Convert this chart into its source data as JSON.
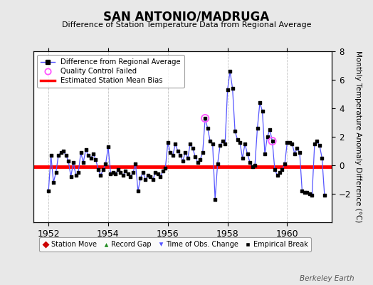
{
  "title": "SAN ANTONIO/MADRUGA",
  "subtitle": "Difference of Station Temperature Data from Regional Average",
  "ylabel_right": "Monthly Temperature Anomaly Difference (°C)",
  "ylim": [
    -4,
    8
  ],
  "xlim": [
    1951.5,
    1961.5
  ],
  "xticks": [
    1952,
    1954,
    1956,
    1958,
    1960
  ],
  "yticks_right": [
    -2,
    0,
    2,
    4,
    6,
    8
  ],
  "bias_y": -0.1,
  "line_color": "#5555ff",
  "marker_color": "#000000",
  "bias_color": "#ff0000",
  "bg_color": "#e8e8e8",
  "plot_bg": "#ffffff",
  "watermark": "Berkeley Earth",
  "qc_failed_color": "#ff55ff",
  "qc_failed_points": [
    [
      1957.25,
      3.3
    ],
    [
      1959.5,
      1.7
    ]
  ],
  "time_series": [
    [
      1952.0,
      -1.8
    ],
    [
      1952.083,
      0.7
    ],
    [
      1952.167,
      -1.2
    ],
    [
      1952.25,
      -0.5
    ],
    [
      1952.333,
      0.7
    ],
    [
      1952.417,
      0.9
    ],
    [
      1952.5,
      1.0
    ],
    [
      1952.583,
      0.7
    ],
    [
      1952.667,
      0.3
    ],
    [
      1952.75,
      -0.8
    ],
    [
      1952.833,
      0.2
    ],
    [
      1952.917,
      -0.7
    ],
    [
      1953.0,
      -0.5
    ],
    [
      1953.083,
      0.9
    ],
    [
      1953.167,
      0.2
    ],
    [
      1953.25,
      1.1
    ],
    [
      1953.333,
      0.7
    ],
    [
      1953.417,
      0.5
    ],
    [
      1953.5,
      0.8
    ],
    [
      1953.583,
      0.4
    ],
    [
      1953.667,
      -0.3
    ],
    [
      1953.75,
      -0.7
    ],
    [
      1953.833,
      -0.3
    ],
    [
      1953.917,
      0.1
    ],
    [
      1954.0,
      1.3
    ],
    [
      1954.083,
      -0.6
    ],
    [
      1954.167,
      -0.5
    ],
    [
      1954.25,
      -0.6
    ],
    [
      1954.333,
      -0.3
    ],
    [
      1954.417,
      -0.5
    ],
    [
      1954.5,
      -0.7
    ],
    [
      1954.583,
      -0.4
    ],
    [
      1954.667,
      -0.6
    ],
    [
      1954.75,
      -0.8
    ],
    [
      1954.833,
      -0.5
    ],
    [
      1954.917,
      0.1
    ],
    [
      1955.0,
      -1.8
    ],
    [
      1955.083,
      -0.9
    ],
    [
      1955.167,
      -0.5
    ],
    [
      1955.25,
      -1.0
    ],
    [
      1955.333,
      -0.7
    ],
    [
      1955.417,
      -0.8
    ],
    [
      1955.5,
      -1.0
    ],
    [
      1955.583,
      -0.5
    ],
    [
      1955.667,
      -0.6
    ],
    [
      1955.75,
      -0.8
    ],
    [
      1955.833,
      -0.4
    ],
    [
      1955.917,
      -0.2
    ],
    [
      1956.0,
      1.6
    ],
    [
      1956.083,
      0.9
    ],
    [
      1956.167,
      0.7
    ],
    [
      1956.25,
      1.5
    ],
    [
      1956.333,
      1.0
    ],
    [
      1956.417,
      0.7
    ],
    [
      1956.5,
      0.3
    ],
    [
      1956.583,
      0.9
    ],
    [
      1956.667,
      0.5
    ],
    [
      1956.75,
      1.5
    ],
    [
      1956.833,
      1.2
    ],
    [
      1956.917,
      0.6
    ],
    [
      1957.0,
      0.2
    ],
    [
      1957.083,
      0.4
    ],
    [
      1957.167,
      0.9
    ],
    [
      1957.25,
      3.3
    ],
    [
      1957.333,
      2.6
    ],
    [
      1957.417,
      1.7
    ],
    [
      1957.5,
      1.5
    ],
    [
      1957.583,
      -2.4
    ],
    [
      1957.667,
      0.1
    ],
    [
      1957.75,
      1.4
    ],
    [
      1957.833,
      1.7
    ],
    [
      1957.917,
      1.5
    ],
    [
      1958.0,
      5.3
    ],
    [
      1958.083,
      6.6
    ],
    [
      1958.167,
      5.4
    ],
    [
      1958.25,
      2.4
    ],
    [
      1958.333,
      1.8
    ],
    [
      1958.417,
      1.6
    ],
    [
      1958.5,
      0.5
    ],
    [
      1958.583,
      1.5
    ],
    [
      1958.667,
      0.8
    ],
    [
      1958.75,
      0.2
    ],
    [
      1958.833,
      -0.1
    ],
    [
      1958.917,
      0.0
    ],
    [
      1959.0,
      2.6
    ],
    [
      1959.083,
      4.4
    ],
    [
      1959.167,
      3.8
    ],
    [
      1959.25,
      0.8
    ],
    [
      1959.333,
      2.0
    ],
    [
      1959.417,
      2.5
    ],
    [
      1959.5,
      1.7
    ],
    [
      1959.583,
      -0.3
    ],
    [
      1959.667,
      -0.7
    ],
    [
      1959.75,
      -0.5
    ],
    [
      1959.833,
      -0.3
    ],
    [
      1959.917,
      0.1
    ],
    [
      1960.0,
      1.6
    ],
    [
      1960.083,
      1.6
    ],
    [
      1960.167,
      1.5
    ],
    [
      1960.25,
      0.8
    ],
    [
      1960.333,
      1.2
    ],
    [
      1960.417,
      0.9
    ],
    [
      1960.5,
      -1.8
    ],
    [
      1960.583,
      -1.9
    ],
    [
      1960.667,
      -1.9
    ],
    [
      1960.75,
      -2.0
    ],
    [
      1960.833,
      -2.1
    ],
    [
      1960.917,
      1.5
    ],
    [
      1961.0,
      1.7
    ],
    [
      1961.083,
      1.4
    ],
    [
      1961.167,
      0.5
    ],
    [
      1961.25,
      -2.1
    ]
  ]
}
